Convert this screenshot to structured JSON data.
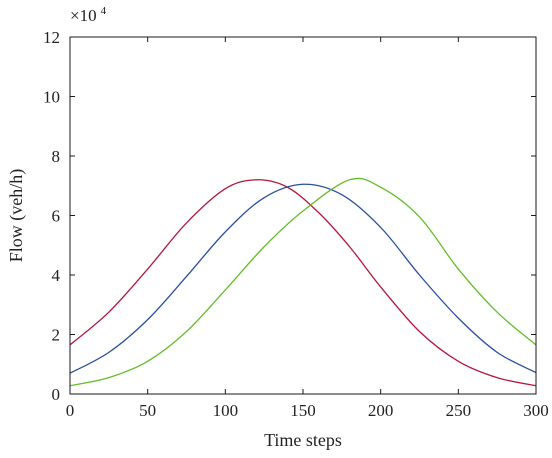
{
  "chart_data": {
    "type": "line",
    "title": "",
    "xlabel": "Time steps",
    "ylabel": "Flow (veh/h)",
    "y_exponent_label": {
      "base": "×10",
      "power": "4"
    },
    "xlim": [
      0,
      300
    ],
    "ylim": [
      0,
      12
    ],
    "x_ticks": [
      "0",
      "50",
      "100",
      "150",
      "200",
      "250",
      "300"
    ],
    "y_ticks": [
      "0",
      "2",
      "4",
      "6",
      "8",
      "10",
      "12"
    ],
    "grid": false,
    "legend": "none",
    "series": [
      {
        "color": "#b0173c",
        "x": [
          0,
          25,
          50,
          75,
          100,
          120,
          140,
          160,
          180,
          200,
          225,
          250,
          275,
          300
        ],
        "y": [
          1.65,
          2.75,
          4.2,
          5.75,
          6.9,
          7.2,
          6.95,
          6.1,
          4.95,
          3.6,
          2.1,
          1.1,
          0.55,
          0.28
        ]
      },
      {
        "color": "#2a4f9e",
        "x": [
          0,
          25,
          50,
          75,
          100,
          125,
          150,
          175,
          200,
          225,
          250,
          275,
          300
        ],
        "y": [
          0.7,
          1.4,
          2.5,
          3.95,
          5.45,
          6.6,
          7.05,
          6.7,
          5.6,
          4.0,
          2.55,
          1.4,
          0.72
        ]
      },
      {
        "color": "#66bb2a",
        "x": [
          0,
          25,
          50,
          75,
          100,
          125,
          150,
          180,
          200,
          225,
          250,
          275,
          300
        ],
        "y": [
          0.28,
          0.55,
          1.1,
          2.1,
          3.5,
          4.95,
          6.15,
          7.2,
          6.95,
          5.95,
          4.2,
          2.75,
          1.65
        ]
      }
    ]
  }
}
